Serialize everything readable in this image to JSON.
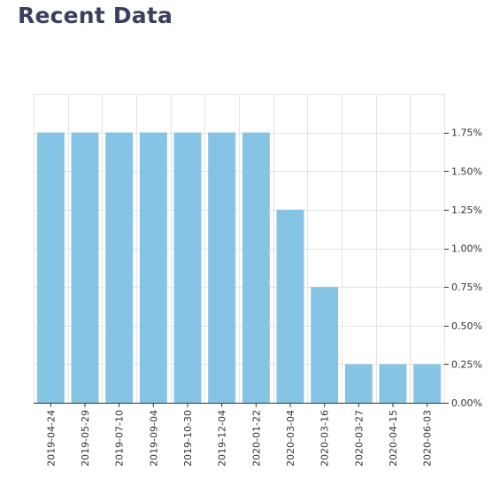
{
  "header": {
    "title": "Recent Data"
  },
  "chart_data": {
    "type": "bar",
    "categories": [
      "2019-04-24",
      "2019-05-29",
      "2019-07-10",
      "2019-09-04",
      "2019-10-30",
      "2019-12-04",
      "2020-01-22",
      "2020-03-04",
      "2020-03-16",
      "2020-03-27",
      "2020-04-15",
      "2020-06-03"
    ],
    "values": [
      1.75,
      1.75,
      1.75,
      1.75,
      1.75,
      1.75,
      1.75,
      1.25,
      0.75,
      0.25,
      0.25,
      0.25
    ],
    "ylim": [
      0,
      2.0
    ],
    "yticks": [
      0,
      0.25,
      0.5,
      0.75,
      1.0,
      1.25,
      1.5,
      1.75
    ],
    "ytick_labels": [
      "0.00%",
      "0.25%",
      "0.50%",
      "0.75%",
      "1.00%",
      "1.25%",
      "1.50%",
      "1.75%"
    ],
    "y_axis_position": "right",
    "grid": true,
    "bar_color": "#86c4e5",
    "grid_color": "#e3e3e3",
    "axis_color": "#333333"
  }
}
